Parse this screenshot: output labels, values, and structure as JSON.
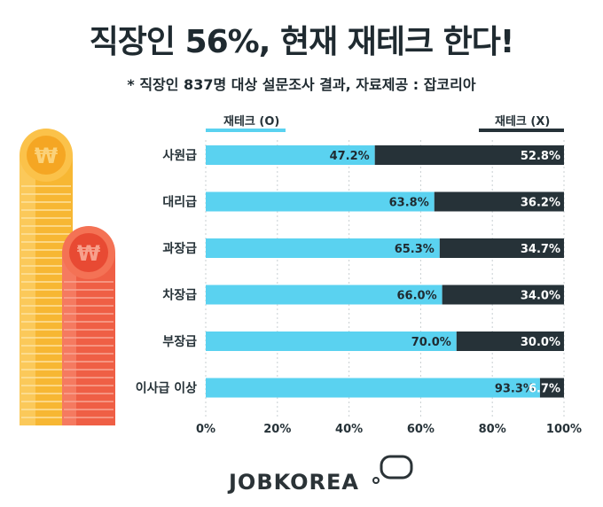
{
  "header": {
    "title": "직장인 56%, 현재 재테크 한다!",
    "subtitle": "* 직장인 837명 대상 설문조사 결과, 자료제공 : 잡코리아"
  },
  "colors": {
    "yes": "#5ad2f0",
    "no": "#263238",
    "coin_orange": "#f7b733",
    "coin_red": "#ef5f45"
  },
  "icons": [
    "won-coin-stack-icon",
    "jobkorea-logo-icon"
  ],
  "logo": {
    "text": "JOBKOREA"
  },
  "chart_data": {
    "type": "bar",
    "orientation": "horizontal",
    "stacked": true,
    "categories": [
      "사원급",
      "대리급",
      "과장급",
      "차장급",
      "부장급",
      "이사급 이상"
    ],
    "series": [
      {
        "name": "재테크 (O)",
        "values": [
          47.2,
          63.8,
          65.3,
          66.0,
          70.0,
          93.3
        ]
      },
      {
        "name": "재테크 (X)",
        "values": [
          52.8,
          36.2,
          34.7,
          34.0,
          30.0,
          6.7
        ]
      }
    ],
    "data_labels": [
      [
        "47.2%",
        "63.8%",
        "65.3%",
        "66.0%",
        "70.0%",
        "93.3%"
      ],
      [
        "52.8%",
        "36.2%",
        "34.7%",
        "34.0%",
        "30.0%",
        "6.7%"
      ]
    ],
    "xlim": [
      0,
      100
    ],
    "xticks": [
      0,
      20,
      40,
      60,
      80,
      100
    ],
    "xtick_labels": [
      "0%",
      "20%",
      "40%",
      "60%",
      "80%",
      "100%"
    ],
    "grid": "vertical",
    "legend": "top"
  }
}
